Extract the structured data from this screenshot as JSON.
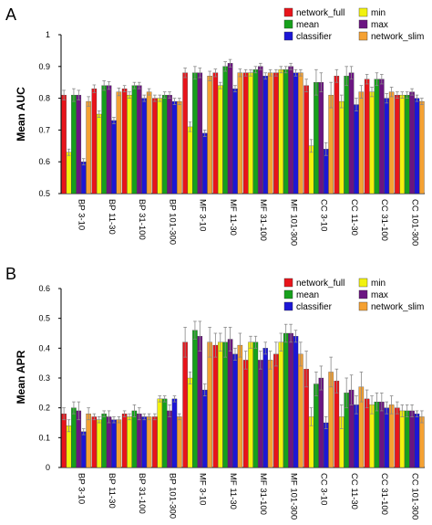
{
  "colors": {
    "network_full": "#e8141b",
    "mean": "#16a01b",
    "classifier": "#1c16d6",
    "min": "#f2f20e",
    "max": "#6b1582",
    "network_slim": "#f5a132"
  },
  "chart_data": [
    {
      "type": "bar",
      "panel": "A",
      "ylabel": "Mean AUC",
      "ylim": [
        0.5,
        1.0
      ],
      "yticks": [
        "0.5",
        "0.6",
        "0.7",
        "0.8",
        "0.9",
        "1"
      ],
      "legend_position": "top-right",
      "categories": [
        "BP 3-10",
        "BP 11-30",
        "BP 31-100",
        "BP 101-300",
        "MF 3-10",
        "MF 11-30",
        "MF 31-100",
        "MF 101-300",
        "CC 3-10",
        "CC 11-30",
        "CC 31-100",
        "CC 101-300"
      ],
      "series": [
        {
          "key": "network_full",
          "name": "network_full",
          "values": [
            0.81,
            0.83,
            0.83,
            0.8,
            0.88,
            0.88,
            0.88,
            0.88,
            0.84,
            0.87,
            0.86,
            0.81
          ],
          "errors": [
            0.015,
            0.012,
            0.01,
            0.01,
            0.015,
            0.012,
            0.01,
            0.01,
            0.02,
            0.02,
            0.015,
            0.01
          ]
        },
        {
          "key": "min",
          "name": "min",
          "values": [
            0.63,
            0.75,
            0.81,
            0.8,
            0.71,
            0.84,
            0.88,
            0.89,
            0.65,
            0.79,
            0.82,
            0.81
          ],
          "errors": [
            0.01,
            0.01,
            0.01,
            0.01,
            0.015,
            0.01,
            0.01,
            0.01,
            0.02,
            0.02,
            0.015,
            0.01
          ]
        },
        {
          "key": "mean",
          "name": "mean",
          "values": [
            0.81,
            0.84,
            0.84,
            0.81,
            0.88,
            0.9,
            0.89,
            0.89,
            0.85,
            0.87,
            0.86,
            0.81
          ],
          "errors": [
            0.02,
            0.015,
            0.01,
            0.01,
            0.02,
            0.015,
            0.01,
            0.01,
            0.04,
            0.03,
            0.02,
            0.01
          ]
        },
        {
          "key": "max",
          "name": "max",
          "values": [
            0.81,
            0.84,
            0.84,
            0.81,
            0.88,
            0.91,
            0.9,
            0.9,
            0.85,
            0.88,
            0.86,
            0.82
          ],
          "errors": [
            0.015,
            0.012,
            0.01,
            0.01,
            0.015,
            0.012,
            0.01,
            0.01,
            0.03,
            0.02,
            0.015,
            0.01
          ]
        },
        {
          "key": "classifier",
          "name": "classifier",
          "values": [
            0.6,
            0.73,
            0.8,
            0.79,
            0.69,
            0.83,
            0.87,
            0.88,
            0.64,
            0.78,
            0.8,
            0.8
          ],
          "errors": [
            0.01,
            0.01,
            0.01,
            0.01,
            0.01,
            0.01,
            0.01,
            0.01,
            0.02,
            0.02,
            0.015,
            0.01
          ]
        },
        {
          "key": "network_slim",
          "name": "network_slim",
          "values": [
            0.79,
            0.82,
            0.82,
            0.79,
            0.87,
            0.88,
            0.88,
            0.88,
            0.81,
            0.82,
            0.82,
            0.79
          ],
          "errors": [
            0.015,
            0.012,
            0.01,
            0.01,
            0.015,
            0.012,
            0.01,
            0.01,
            0.04,
            0.02,
            0.015,
            0.01
          ]
        }
      ]
    },
    {
      "type": "bar",
      "panel": "B",
      "ylabel": "Mean APR",
      "ylim": [
        0,
        0.6
      ],
      "yticks": [
        "0",
        "0.1",
        "0.2",
        "0.3",
        "0.4",
        "0.5",
        "0.6"
      ],
      "legend_position": "top-right",
      "categories": [
        "BP 3-10",
        "BP 11-30",
        "BP 31-100",
        "BP 101-300",
        "MF 3-10",
        "MF 11-30",
        "MF 31-100",
        "MF 101-300",
        "CC 3-10",
        "CC 11-30",
        "CC 31-100",
        "CC 101-300"
      ],
      "series": [
        {
          "key": "network_full",
          "name": "network_full",
          "values": [
            0.18,
            0.17,
            0.18,
            0.17,
            0.42,
            0.41,
            0.36,
            0.38,
            0.33,
            0.29,
            0.23,
            0.2
          ],
          "errors": [
            0.02,
            0.01,
            0.01,
            0.01,
            0.05,
            0.04,
            0.03,
            0.04,
            0.06,
            0.04,
            0.03,
            0.02
          ]
        },
        {
          "key": "min",
          "name": "min",
          "values": [
            0.14,
            0.16,
            0.17,
            0.23,
            0.3,
            0.42,
            0.42,
            0.42,
            0.17,
            0.17,
            0.21,
            0.19
          ],
          "errors": [
            0.02,
            0.01,
            0.01,
            0.01,
            0.02,
            0.03,
            0.02,
            0.03,
            0.03,
            0.04,
            0.03,
            0.02
          ]
        },
        {
          "key": "mean",
          "name": "mean",
          "values": [
            0.2,
            0.18,
            0.19,
            0.23,
            0.46,
            0.42,
            0.42,
            0.45,
            0.28,
            0.25,
            0.22,
            0.19
          ],
          "errors": [
            0.02,
            0.01,
            0.02,
            0.01,
            0.03,
            0.05,
            0.02,
            0.03,
            0.04,
            0.05,
            0.03,
            0.02
          ]
        },
        {
          "key": "max",
          "name": "max",
          "values": [
            0.19,
            0.17,
            0.18,
            0.19,
            0.44,
            0.43,
            0.36,
            0.45,
            0.3,
            0.26,
            0.22,
            0.19
          ],
          "errors": [
            0.03,
            0.02,
            0.02,
            0.02,
            0.05,
            0.04,
            0.03,
            0.03,
            0.04,
            0.05,
            0.03,
            0.02
          ]
        },
        {
          "key": "classifier",
          "name": "classifier",
          "values": [
            0.12,
            0.16,
            0.17,
            0.23,
            0.26,
            0.38,
            0.4,
            0.44,
            0.15,
            0.21,
            0.2,
            0.18
          ],
          "errors": [
            0.01,
            0.01,
            0.01,
            0.01,
            0.02,
            0.02,
            0.02,
            0.02,
            0.02,
            0.03,
            0.02,
            0.01
          ]
        },
        {
          "key": "network_slim",
          "name": "network_slim",
          "values": [
            0.18,
            0.16,
            0.17,
            0.17,
            0.42,
            0.41,
            0.36,
            0.38,
            0.32,
            0.27,
            0.21,
            0.17
          ],
          "errors": [
            0.02,
            0.01,
            0.01,
            0.01,
            0.05,
            0.04,
            0.03,
            0.04,
            0.05,
            0.05,
            0.03,
            0.02
          ]
        }
      ]
    }
  ],
  "legend_order": [
    "network_full",
    "min",
    "mean",
    "max",
    "classifier",
    "network_slim"
  ]
}
